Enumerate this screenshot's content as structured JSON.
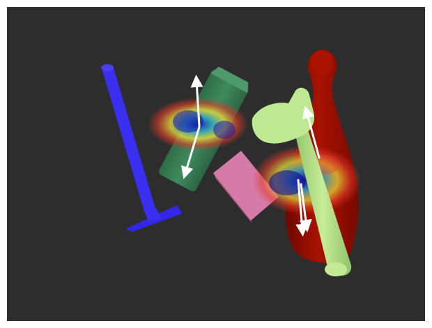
{
  "scene": {
    "background_color": "#2d2d2d",
    "frame_color": "#ffffff",
    "objects": [
      {
        "name": "blue-mallet",
        "color": "#3a2ef0"
      },
      {
        "name": "green-cylinder",
        "color": "#3f8a5e"
      },
      {
        "name": "pink-block",
        "color": "#d67aa8"
      },
      {
        "name": "red-bowling-pin",
        "color": "#9a0c00"
      },
      {
        "name": "light-green-hammer",
        "color": "#b9e48a"
      }
    ],
    "overlays": [
      {
        "name": "heatmap-left",
        "palette": [
          "#1a1ab0",
          "#2ea4c8",
          "#f2e43a",
          "#e23a2a"
        ]
      },
      {
        "name": "heatmap-right",
        "palette": [
          "#1a1ab0",
          "#2ea4c8",
          "#f2e43a",
          "#e23a2a"
        ]
      }
    ],
    "arrow_color": "#ffffff"
  }
}
